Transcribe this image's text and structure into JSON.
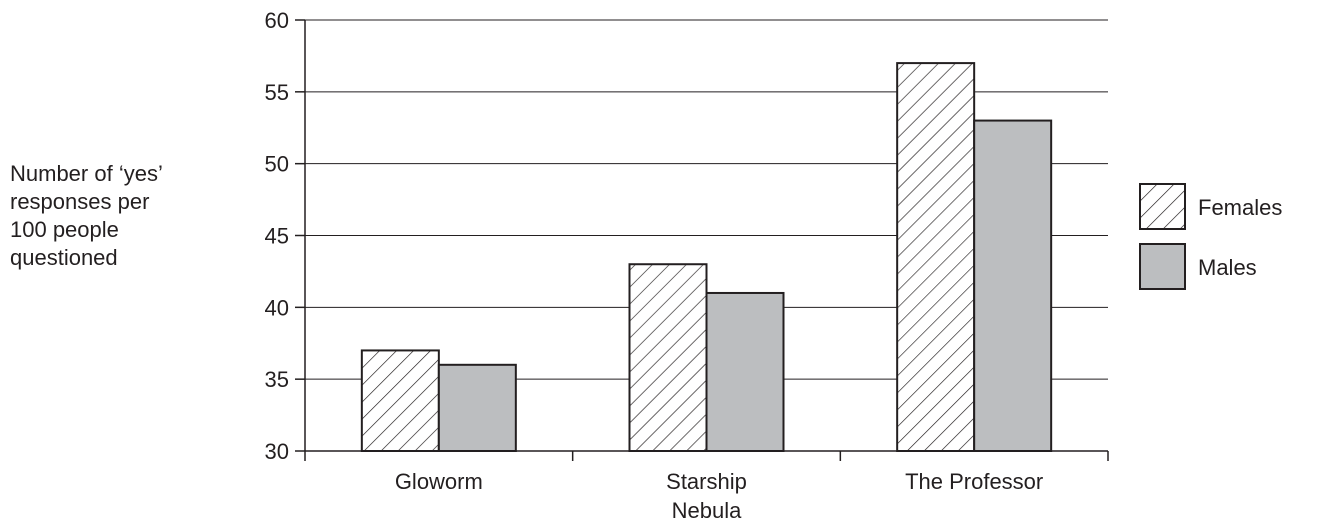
{
  "chart_data": {
    "type": "bar",
    "title": "",
    "xlabel": "",
    "ylabel_lines": [
      "Number of ‘yes’",
      "responses per",
      "100 people",
      "questioned"
    ],
    "categories": [
      {
        "lines": [
          "Gloworm"
        ]
      },
      {
        "lines": [
          "Starship",
          "Nebula"
        ]
      },
      {
        "lines": [
          "The Professor"
        ]
      }
    ],
    "series": [
      {
        "name": "Females",
        "values": [
          37,
          43,
          57
        ],
        "fill": "hatch"
      },
      {
        "name": "Males",
        "values": [
          36,
          41,
          53
        ],
        "fill": "#bcbec0"
      }
    ],
    "ylim": [
      30,
      60
    ],
    "yticks": [
      30,
      35,
      40,
      45,
      50,
      55,
      60
    ],
    "grid": true,
    "legend_position": "right",
    "colors": {
      "axis": "#231f20",
      "male_fill": "#bcbec0",
      "hatch_line": "#231f20"
    }
  }
}
